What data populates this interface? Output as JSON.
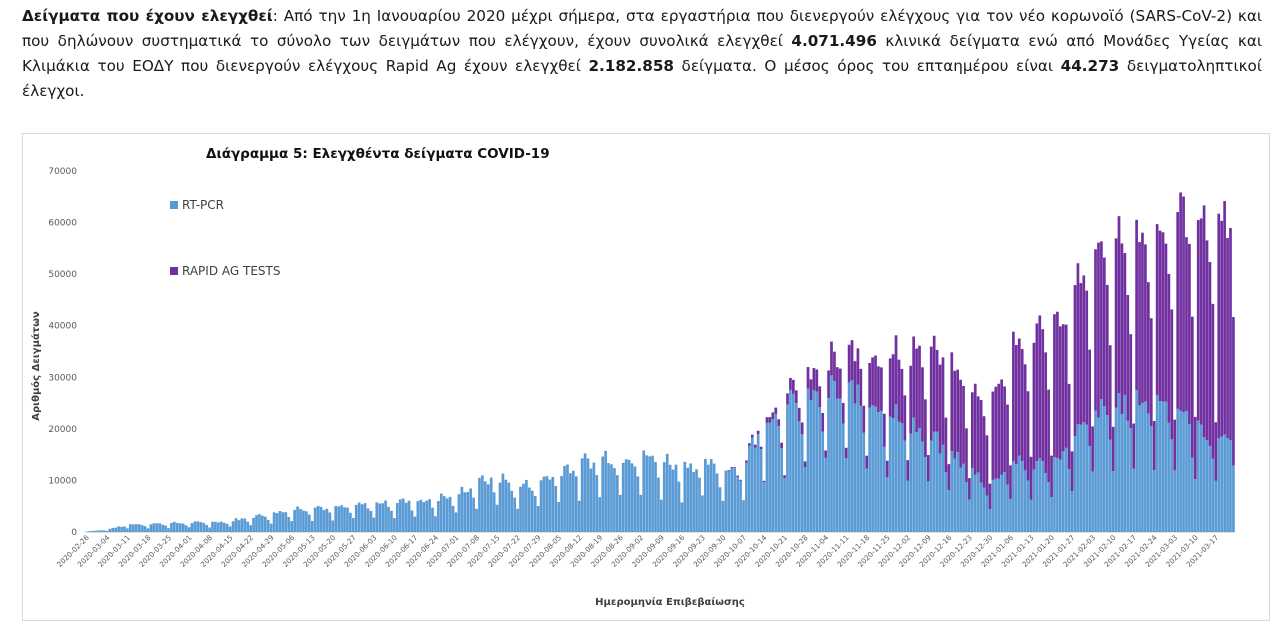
{
  "intro": {
    "lead": "Δείγματα που έχουν ελεγχθεί",
    "text1": ": Από την 1η Ιανουαρίου 2020 μέχρι σήμερα, στα εργαστήρια που διενεργούν ελέγχους για τον νέο κορωνοϊό (SARS-CoV-2) και που δηλώνουν συστηματικά το σύνολο των δειγμάτων που ελέγχουν, έχουν συνολικά ελεγχθεί ",
    "pcr_total": "4.071.496",
    "text2": " κλινικά δείγματα ενώ από Μονάδες Υγείας και Κλιμάκια του ΕΟΔΥ που διενεργούν ελέγχους Rapid Ag έχουν ελεγχθεί ",
    "rapid_total": "2.182.858",
    "text3": " δείγματα. Ο μέσος όρος του επταημέρου είναι ",
    "weekly_avg": "44.273",
    "text4": " δειγματοληπτικοί έλεγχοι."
  },
  "chart_data": {
    "type": "bar",
    "stacked": true,
    "title": "Διάγραμμα 5: Ελεγχθέντα δείγματα COVID-19",
    "xlabel": "Ημερομηνία Επιβεβαίωσης",
    "ylabel": "Αριθμός Δειγμάτων",
    "ylim": [
      0,
      70000
    ],
    "y_ticks": [
      "0",
      "10000",
      "20000",
      "30000",
      "40000",
      "50000",
      "60000",
      "70000"
    ],
    "grid": false,
    "legend_position": "top-left inside",
    "x_tick_labels": [
      "2020-02-26",
      "2020-03-04",
      "2020-03-11",
      "2020-03-18",
      "2020-03-25",
      "2020-04-01",
      "2020-04-08",
      "2020-04-15",
      "2020-04-22",
      "2020-04-29",
      "2020-05-06",
      "2020-05-13",
      "2020-05-20",
      "2020-05-27",
      "2020-06-03",
      "2020-06-10",
      "2020-06-17",
      "2020-06-24",
      "2020-07-01",
      "2020-07-08",
      "2020-07-15",
      "2020-07-22",
      "2020-07-29",
      "2020-08-05",
      "2020-08-12",
      "2020-08-19",
      "2020-08-26",
      "2020-09-02",
      "2020-09-09",
      "2020-09-16",
      "2020-09-23",
      "2020-09-30",
      "2020-10-07",
      "2020-10-14",
      "2020-10-21",
      "2020-10-28",
      "2020-11-04",
      "2020-11-11",
      "2020-11-18",
      "2020-11-25",
      "2020-12-02",
      "2020-12-09",
      "2020-12-16",
      "2020-12-23",
      "2020-12-30",
      "2021-01-06",
      "2021-01-13",
      "2021-01-20",
      "2021-01-27",
      "2021-02-03",
      "2021-02-10",
      "2021-02-17",
      "2021-02-24",
      "2021-03-03",
      "2021-03-10",
      "2021-03-17"
    ],
    "series": [
      {
        "name": "RT-PCR",
        "color": "#5b9bd5",
        "weekly_values": [
          100,
          400,
          1300,
          1400,
          1500,
          1600,
          1700,
          1900,
          2600,
          3100,
          3900,
          4300,
          4100,
          4500,
          4900,
          5200,
          5400,
          5700,
          6400,
          8500,
          9500,
          7800,
          8600,
          10600,
          11800,
          12800,
          13000,
          13200,
          12400,
          11600,
          11800,
          10800,
          11500,
          19500,
          21000,
          22500,
          24000,
          24500,
          23000,
          21000,
          19000,
          16500,
          14000,
          11000,
          8000,
          12000,
          11500,
          12000,
          15500,
          20000,
          21500,
          22500,
          23000,
          22000,
          18000,
          16500
        ]
      },
      {
        "name": "RAPID AG TESTS",
        "color": "#7030a0",
        "weekly_values": [
          0,
          0,
          0,
          0,
          0,
          0,
          0,
          0,
          0,
          0,
          0,
          0,
          0,
          0,
          0,
          0,
          0,
          0,
          0,
          0,
          0,
          0,
          0,
          0,
          0,
          0,
          0,
          0,
          0,
          0,
          0,
          0,
          300,
          700,
          1500,
          3000,
          4500,
          5500,
          7500,
          9000,
          11500,
          14000,
          15000,
          13000,
          14000,
          19000,
          22000,
          21000,
          23000,
          26000,
          25000,
          26000,
          27000,
          30000,
          33000,
          36000
        ]
      }
    ]
  }
}
